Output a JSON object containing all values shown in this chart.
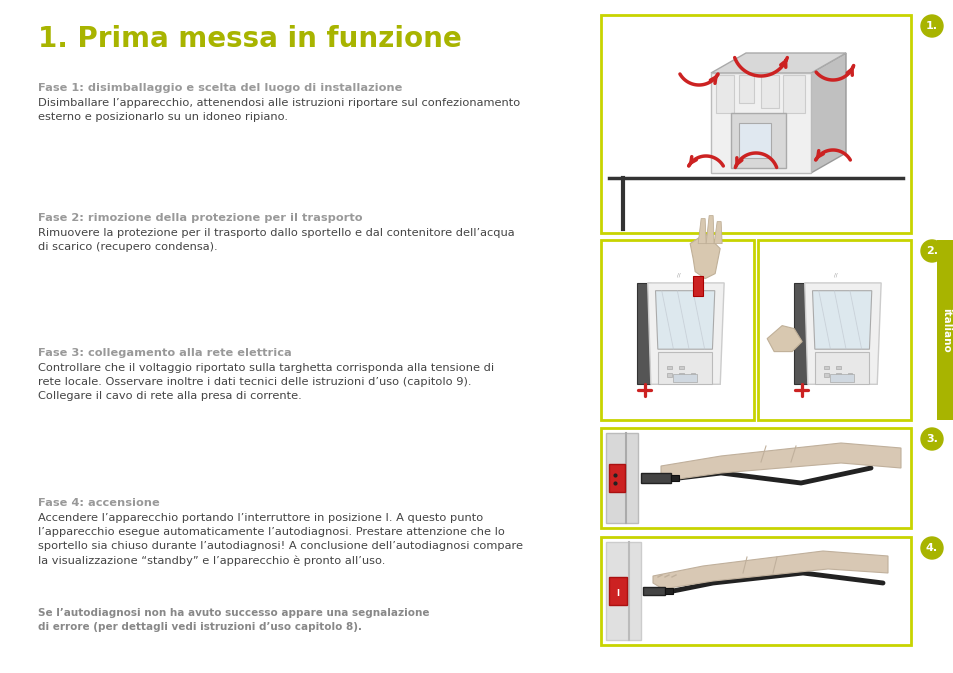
{
  "title": "1. Prima messa in funzione",
  "title_color": "#a8b400",
  "background_color": "#ffffff",
  "sections": [
    {
      "heading_prefix": "Fase 1: ",
      "heading_bold": "disimballaggio e scelta del luogo di installazione",
      "body": "Disimballare l’apparecchio, attenendosi alle istruzioni riportare sul confezionamento\nesterno e posizionarlo su un idoneo ripiano."
    },
    {
      "heading_prefix": "Fase 2: ",
      "heading_bold": "rimozione della protezione per il trasporto",
      "body": "Rimuovere la protezione per il trasporto dallo sportello e dal contenitore dell’acqua\ndi scarico (recupero condensa)."
    },
    {
      "heading_prefix": "Fase 3: ",
      "heading_bold": "collegamento alla rete elettrica",
      "body": "Controllare che il voltaggio riportato sulla targhetta corrisponda alla tensione di\nrete locale. Osservare inoltre i dati tecnici delle istruzioni d’uso (capitolo 9).\nCollegare il cavo di rete alla presa di corrente."
    },
    {
      "heading_prefix": "Fase 4: ",
      "heading_bold": "accensione",
      "body": "Accendere l’apparecchio portando l’interruttore in posizione I. A questo punto\nl’apparecchio esegue automaticamente l’autodiagnosi. Prestare attenzione che lo\nsportello sia chiuso durante l’autodiagnosi! A conclusione dell’autodiagnosi compare\nla visualizzazione “standby” e l’apparecchio è pronto all’uso."
    }
  ],
  "footer": "Se l’autodiagnosi non ha avuto successo appare una segnalazione\ndi errore (per dettagli vedi istruzioni d’uso capitolo 8).",
  "heading_color": "#999999",
  "body_color": "#444444",
  "footer_color": "#888888",
  "sidebar_color": "#a8b400",
  "sidebar_text": "italiano",
  "border_color": "#c8d400",
  "step_label_color": "#a8b400",
  "step_circle_color": "#a8b400",
  "step_labels": [
    "1.",
    "2.",
    "3.",
    "4."
  ],
  "arrow_color": "#cc2222",
  "red_color": "#cc2222",
  "dark_color": "#333333",
  "gray_light": "#e8e8e8",
  "gray_mid": "#bbbbbb",
  "gray_dark": "#888888"
}
